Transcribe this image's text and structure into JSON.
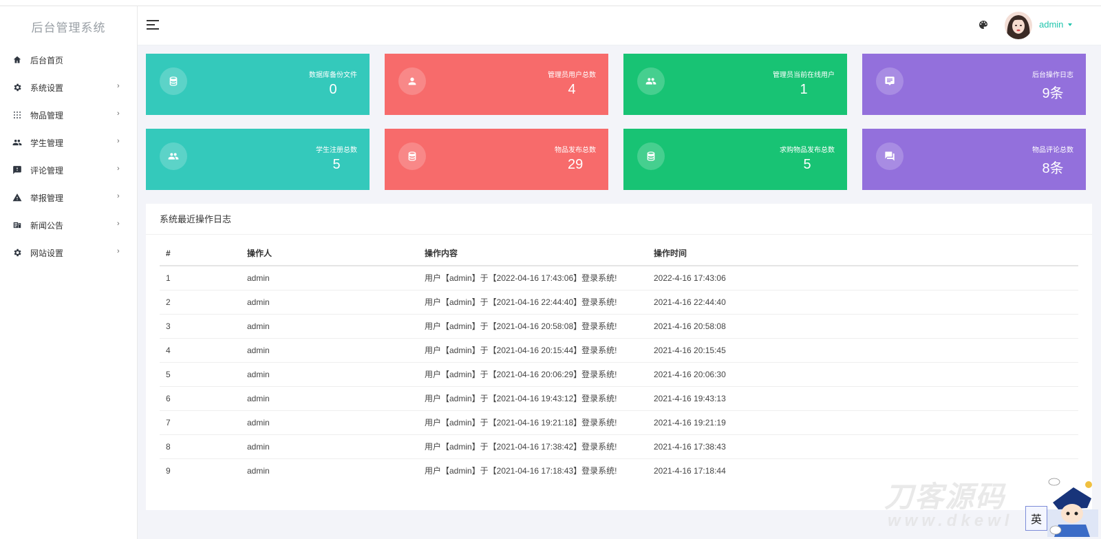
{
  "app": {
    "brand": "后台管理系统"
  },
  "sidebar": {
    "items": [
      {
        "label": "后台首页",
        "icon": "home-icon",
        "has_children": false
      },
      {
        "label": "系统设置",
        "icon": "gear-icon",
        "has_children": true
      },
      {
        "label": "物品管理",
        "icon": "grid-icon",
        "has_children": true
      },
      {
        "label": "学生管理",
        "icon": "users-icon",
        "has_children": true
      },
      {
        "label": "评论管理",
        "icon": "comment-icon",
        "has_children": true
      },
      {
        "label": "举报管理",
        "icon": "warning-icon",
        "has_children": true
      },
      {
        "label": "新闻公告",
        "icon": "news-icon",
        "has_children": true
      },
      {
        "label": "网站设置",
        "icon": "gear-icon",
        "has_children": true
      }
    ],
    "chevron": "›"
  },
  "header": {
    "user": "admin"
  },
  "stats": [
    {
      "label": "数据库备份文件",
      "value": "0",
      "color": "#34c9bb",
      "icon": "database-icon"
    },
    {
      "label": "管理员用户总数",
      "value": "4",
      "color": "#f76b6b",
      "icon": "user-icon"
    },
    {
      "label": "管理员当前在线用户",
      "value": "1",
      "color": "#18c374",
      "icon": "users-icon"
    },
    {
      "label": "后台操作日志",
      "value": "9条",
      "color": "#9370dc",
      "icon": "message-icon"
    },
    {
      "label": "学生注册总数",
      "value": "5",
      "color": "#34c9bb",
      "icon": "users-icon"
    },
    {
      "label": "物品发布总数",
      "value": "29",
      "color": "#f76b6b",
      "icon": "database-icon"
    },
    {
      "label": "求购物品发布总数",
      "value": "5",
      "color": "#18c374",
      "icon": "database-icon"
    },
    {
      "label": "物品评论总数",
      "value": "8条",
      "color": "#9370dc",
      "icon": "chat-icon"
    }
  ],
  "log": {
    "title": "系统最近操作日志",
    "columns": [
      "#",
      "操作人",
      "操作内容",
      "操作时间"
    ],
    "rows": [
      [
        "1",
        "admin",
        "用户【admin】于【2022-04-16 17:43:06】登录系统!",
        "2022-4-16 17:43:06"
      ],
      [
        "2",
        "admin",
        "用户【admin】于【2021-04-16 22:44:40】登录系统!",
        "2021-4-16 22:44:40"
      ],
      [
        "3",
        "admin",
        "用户【admin】于【2021-04-16 20:58:08】登录系统!",
        "2021-4-16 20:58:08"
      ],
      [
        "4",
        "admin",
        "用户【admin】于【2021-04-16 20:15:44】登录系统!",
        "2021-4-16 20:15:45"
      ],
      [
        "5",
        "admin",
        "用户【admin】于【2021-04-16 20:06:29】登录系统!",
        "2021-4-16 20:06:30"
      ],
      [
        "6",
        "admin",
        "用户【admin】于【2021-04-16 19:43:12】登录系统!",
        "2021-4-16 19:43:13"
      ],
      [
        "7",
        "admin",
        "用户【admin】于【2021-04-16 19:21:18】登录系统!",
        "2021-4-16 19:21:19"
      ],
      [
        "8",
        "admin",
        "用户【admin】于【2021-04-16 17:38:42】登录系统!",
        "2021-4-16 17:38:43"
      ],
      [
        "9",
        "admin",
        "用户【admin】于【2021-04-16 17:18:43】登录系统!",
        "2021-4-16 17:18:44"
      ]
    ]
  },
  "watermark": {
    "text": "刀客源码",
    "sub": "www.dkewl",
    "ime": "英"
  }
}
